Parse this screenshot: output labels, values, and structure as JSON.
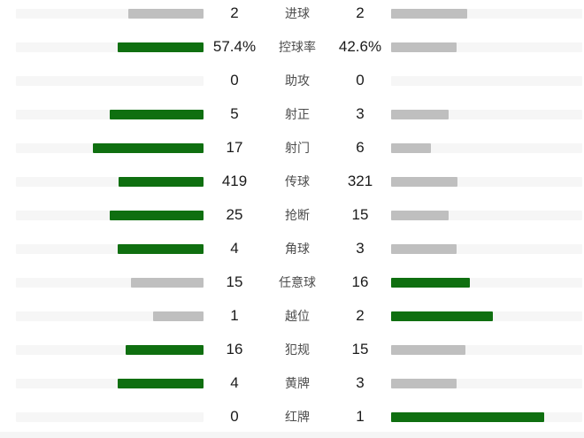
{
  "panel_title": "match-statistics-comparison",
  "colors": {
    "leader_fill": "#0f6f10",
    "trailer_fill": "#bfbfbf",
    "track": "#f6f6f6",
    "value_text": "#1a1a1a",
    "label_text": "#4d4d4d",
    "bottom_divider": "#f5f5f5",
    "background": "#ffffff"
  },
  "chart_data": {
    "type": "bar",
    "layout": "paired-horizontal",
    "legend_position": "none",
    "grid": false,
    "max_fill_fraction": 0.8,
    "bar_rule": "fill_width = 0.8 * value / (left_value + right_value); leading side colored green, trailing or tied side gray, zero value shows empty track",
    "categories": [
      "进球",
      "控球率",
      "助攻",
      "射正",
      "射门",
      "传球",
      "抢断",
      "角球",
      "任意球",
      "越位",
      "犯规",
      "黄牌",
      "红牌"
    ],
    "series": [
      {
        "name": "left-team",
        "values": [
          2,
          57.4,
          0,
          5,
          17,
          419,
          25,
          4,
          15,
          1,
          16,
          4,
          0
        ]
      },
      {
        "name": "right-team",
        "values": [
          2,
          42.6,
          0,
          3,
          6,
          321,
          15,
          3,
          16,
          2,
          15,
          3,
          1
        ]
      }
    ],
    "rows": [
      {
        "label": "进球",
        "left_display": "2",
        "left_value": 2,
        "right_display": "2",
        "right_value": 2
      },
      {
        "label": "控球率",
        "left_display": "57.4%",
        "left_value": 57.4,
        "right_display": "42.6%",
        "right_value": 42.6
      },
      {
        "label": "助攻",
        "left_display": "0",
        "left_value": 0,
        "right_display": "0",
        "right_value": 0
      },
      {
        "label": "射正",
        "left_display": "5",
        "left_value": 5,
        "right_display": "3",
        "right_value": 3
      },
      {
        "label": "射门",
        "left_display": "17",
        "left_value": 17,
        "right_display": "6",
        "right_value": 6
      },
      {
        "label": "传球",
        "left_display": "419",
        "left_value": 419,
        "right_display": "321",
        "right_value": 321
      },
      {
        "label": "抢断",
        "left_display": "25",
        "left_value": 25,
        "right_display": "15",
        "right_value": 15
      },
      {
        "label": "角球",
        "left_display": "4",
        "left_value": 4,
        "right_display": "3",
        "right_value": 3
      },
      {
        "label": "任意球",
        "left_display": "15",
        "left_value": 15,
        "right_display": "16",
        "right_value": 16
      },
      {
        "label": "越位",
        "left_display": "1",
        "left_value": 1,
        "right_display": "2",
        "right_value": 2
      },
      {
        "label": "犯规",
        "left_display": "16",
        "left_value": 16,
        "right_display": "15",
        "right_value": 15
      },
      {
        "label": "黄牌",
        "left_display": "4",
        "left_value": 4,
        "right_display": "3",
        "right_value": 3
      },
      {
        "label": "红牌",
        "left_display": "0",
        "left_value": 0,
        "right_display": "1",
        "right_value": 1
      }
    ]
  }
}
